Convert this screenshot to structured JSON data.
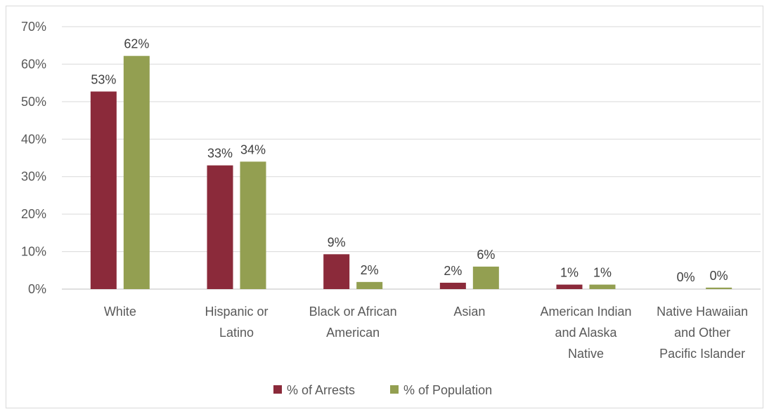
{
  "chart_data": {
    "type": "bar",
    "title": "",
    "xlabel": "",
    "ylabel": "",
    "ylim": [
      0,
      70
    ],
    "yticks": [
      0,
      10,
      20,
      30,
      40,
      50,
      60,
      70
    ],
    "ytick_format": "%",
    "grid": true,
    "legend_position": "bottom",
    "categories": [
      [
        "White"
      ],
      [
        "Hispanic or",
        "Latino"
      ],
      [
        "Black or African",
        "American"
      ],
      [
        "Asian"
      ],
      [
        "American Indian",
        "and Alaska",
        "Native"
      ],
      [
        "Native Hawaiian",
        "and Other",
        "Pacific Islander"
      ]
    ],
    "series": [
      {
        "name": "% of Arrests",
        "color": "#8B2A3A",
        "values": [
          52.7,
          33.0,
          9.3,
          1.7,
          1.2,
          0.0
        ],
        "labels": [
          "53%",
          "33%",
          "9%",
          "2%",
          "1%",
          "0%"
        ]
      },
      {
        "name": "% of Population",
        "color": "#939F51",
        "values": [
          62.2,
          34.0,
          1.9,
          6.0,
          1.2,
          0.4
        ],
        "labels": [
          "62%",
          "34%",
          "2%",
          "6%",
          "1%",
          "0%"
        ]
      }
    ]
  }
}
